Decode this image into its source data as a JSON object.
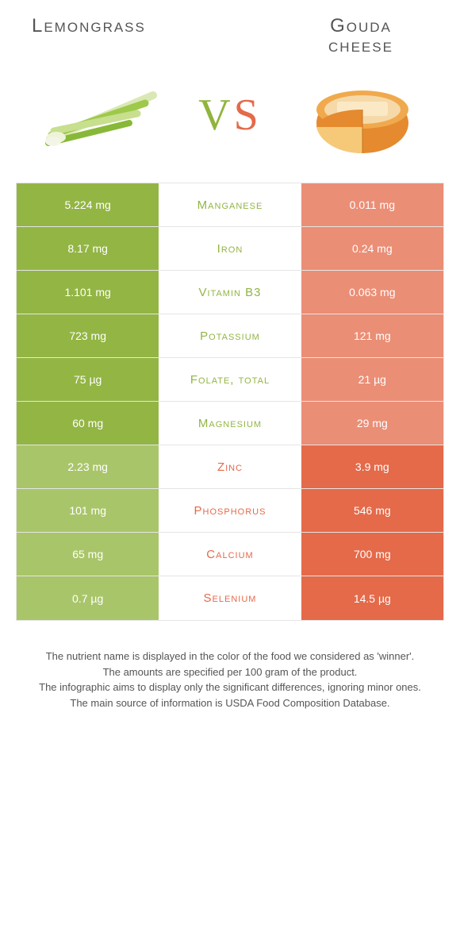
{
  "colors": {
    "left_food": "#93b544",
    "right_food": "#e46a4a",
    "left_dim": "#a9c56a",
    "right_dim": "#eb8e76",
    "border": "#e5e5e5",
    "text": "#555555"
  },
  "header": {
    "left_title": "Lemongrass",
    "right_title_line1": "Gouda",
    "right_title_line2": "cheese",
    "vs_v": "V",
    "vs_s": "S"
  },
  "rows": [
    {
      "nutrient": "Manganese",
      "left": "5.224 mg",
      "right": "0.011 mg",
      "winner": "left"
    },
    {
      "nutrient": "Iron",
      "left": "8.17 mg",
      "right": "0.24 mg",
      "winner": "left"
    },
    {
      "nutrient": "Vitamin B3",
      "left": "1.101 mg",
      "right": "0.063 mg",
      "winner": "left"
    },
    {
      "nutrient": "Potassium",
      "left": "723 mg",
      "right": "121 mg",
      "winner": "left"
    },
    {
      "nutrient": "Folate, total",
      "left": "75 µg",
      "right": "21 µg",
      "winner": "left"
    },
    {
      "nutrient": "Magnesium",
      "left": "60 mg",
      "right": "29 mg",
      "winner": "left"
    },
    {
      "nutrient": "Zinc",
      "left": "2.23 mg",
      "right": "3.9 mg",
      "winner": "right"
    },
    {
      "nutrient": "Phosphorus",
      "left": "101 mg",
      "right": "546 mg",
      "winner": "right"
    },
    {
      "nutrient": "Calcium",
      "left": "65 mg",
      "right": "700 mg",
      "winner": "right"
    },
    {
      "nutrient": "Selenium",
      "left": "0.7 µg",
      "right": "14.5 µg",
      "winner": "right"
    }
  ],
  "footer": {
    "line1": "The nutrient name is displayed in the color of the food we considered as 'winner'.",
    "line2": "The amounts are specified per 100 gram of the product.",
    "line3": "The infographic aims to display only the significant differences, ignoring minor ones.",
    "line4": "The main source of information is USDA Food Composition Database."
  }
}
